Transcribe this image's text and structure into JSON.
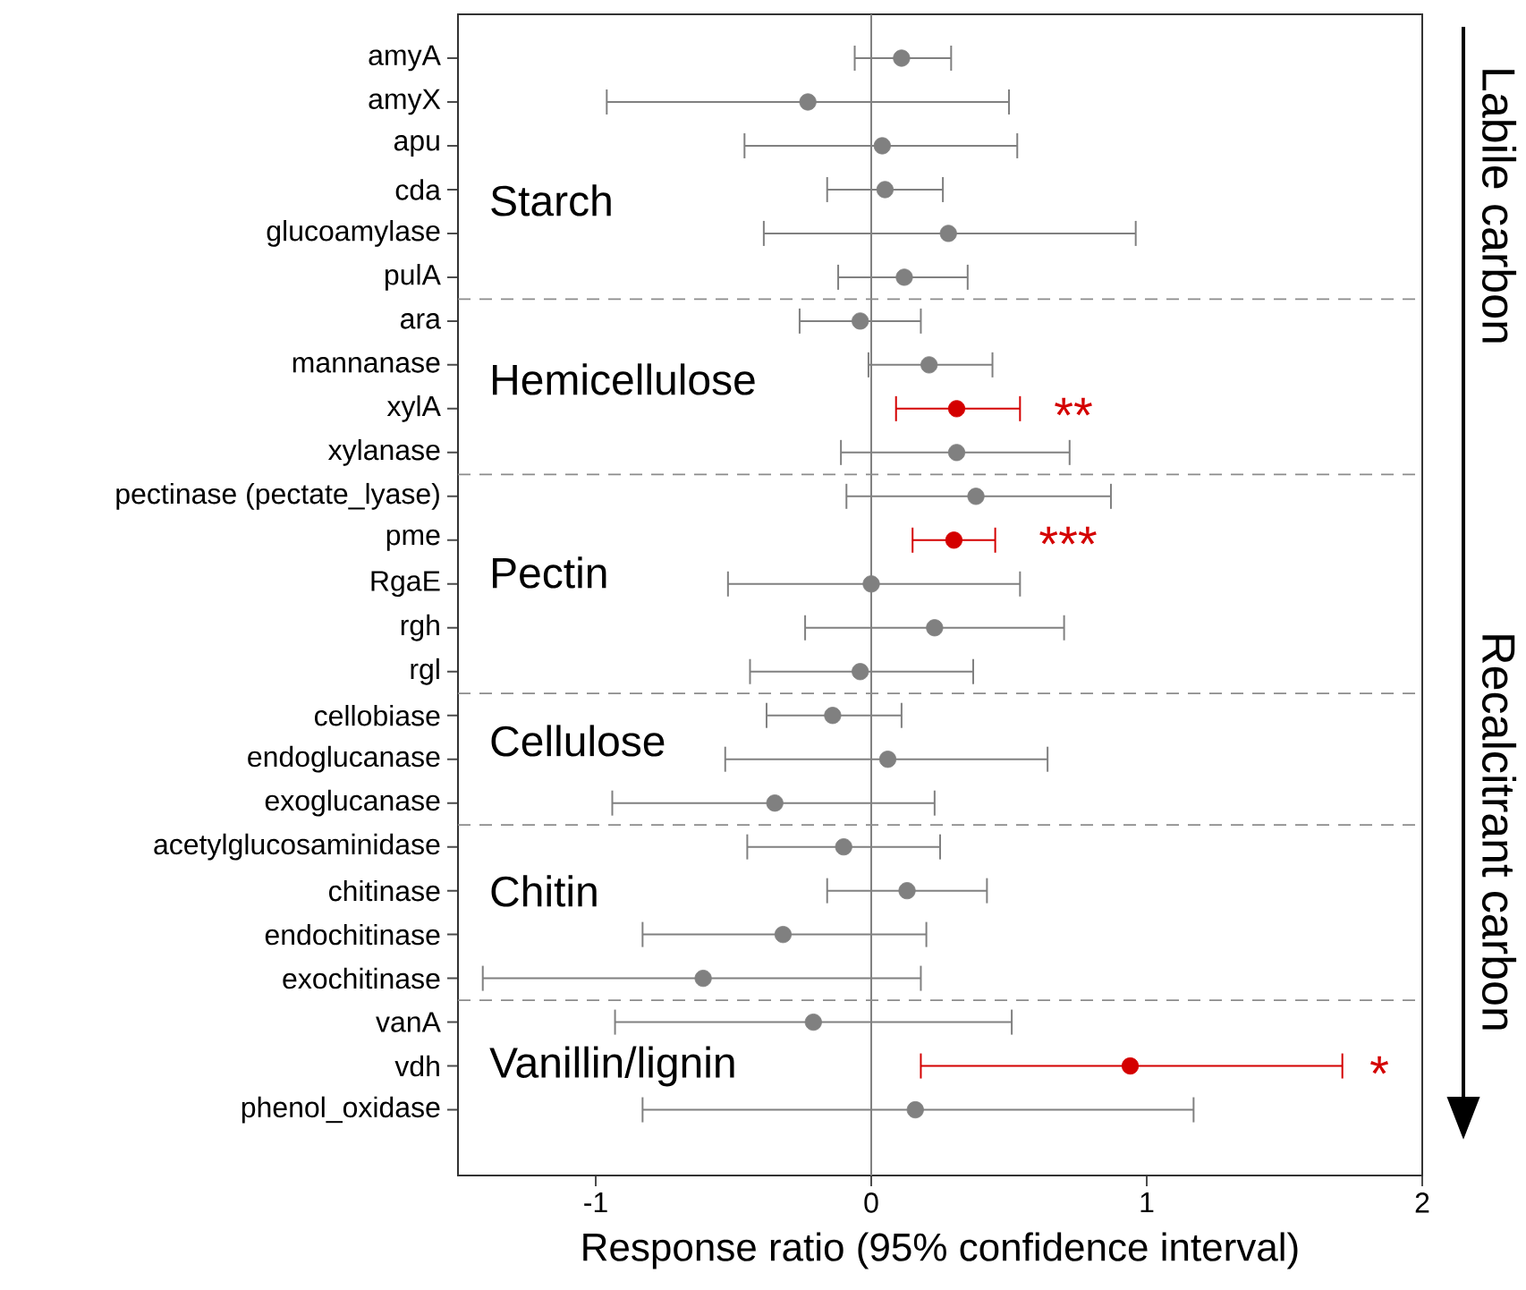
{
  "chart_data": {
    "type": "scatter",
    "orientation": "horizontal",
    "xlabel": "Response ratio (95% confidence interval)",
    "xlim": [
      -1.5,
      2
    ],
    "xticks": [
      -1,
      0,
      1,
      2
    ],
    "categories": [
      "amyA",
      "amyX",
      "apu",
      "cda",
      "glucoamylase",
      "pulA",
      "ara",
      "mannanase",
      "xylA",
      "xylanase",
      "pectinase (pectate_lyase)",
      "pme",
      "RgaE",
      "rgh",
      "rgl",
      "cellobiase",
      "endoglucanase",
      "exoglucanase",
      "acetylglucosaminidase",
      "chitinase",
      "endochitinase",
      "exochitinase",
      "vanA",
      "vdh",
      "phenol_oxidase"
    ],
    "values": [
      0.11,
      -0.23,
      0.04,
      0.05,
      0.28,
      0.12,
      -0.04,
      0.21,
      0.31,
      0.31,
      0.38,
      0.3,
      0.0,
      0.23,
      -0.04,
      -0.14,
      0.06,
      -0.35,
      -0.1,
      0.13,
      -0.32,
      -0.61,
      -0.21,
      0.94,
      0.16
    ],
    "errors": [
      [
        -0.06,
        0.29
      ],
      [
        -0.96,
        0.5
      ],
      [
        -0.46,
        0.53
      ],
      [
        -0.16,
        0.26
      ],
      [
        -0.39,
        0.96
      ],
      [
        -0.12,
        0.35
      ],
      [
        -0.26,
        0.18
      ],
      [
        -0.01,
        0.44
      ],
      [
        0.09,
        0.54
      ],
      [
        -0.11,
        0.72
      ],
      [
        -0.09,
        0.87
      ],
      [
        0.15,
        0.45
      ],
      [
        -0.52,
        0.54
      ],
      [
        -0.24,
        0.7
      ],
      [
        -0.44,
        0.37
      ],
      [
        -0.38,
        0.11
      ],
      [
        -0.53,
        0.64
      ],
      [
        -0.94,
        0.23
      ],
      [
        -0.45,
        0.25
      ],
      [
        -0.16,
        0.42
      ],
      [
        -0.83,
        0.2
      ],
      [
        -1.41,
        0.18
      ],
      [
        -0.93,
        0.51
      ],
      [
        0.18,
        1.71
      ],
      [
        -0.83,
        1.17
      ]
    ],
    "colors": [
      "#808080",
      "#808080",
      "#808080",
      "#808080",
      "#808080",
      "#808080",
      "#808080",
      "#808080",
      "#d40000",
      "#808080",
      "#808080",
      "#d40000",
      "#808080",
      "#808080",
      "#808080",
      "#808080",
      "#808080",
      "#808080",
      "#808080",
      "#808080",
      "#808080",
      "#808080",
      "#808080",
      "#d40000",
      "#808080"
    ],
    "ref_lines": [
      {
        "axis": "x",
        "value": 0,
        "color": "#808080",
        "line_style": "solid"
      }
    ],
    "annotations": [
      "Starch",
      "Hemicellulose",
      "Pectin",
      "Cellulose",
      "Chitin",
      "Vanillin/lignin",
      "**",
      "***",
      "*",
      "Labile carbon",
      "Recalcitrant carbon"
    ]
  }
}
